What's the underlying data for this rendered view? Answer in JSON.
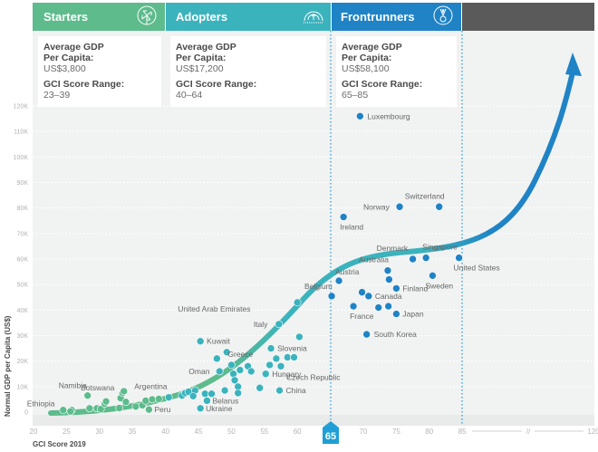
{
  "bands": [
    {
      "name": "Starters",
      "icon": "pinwheel-icon",
      "color": "#5dbb8c",
      "avg_gdp_label": "Average GDP",
      "avg_gdp_label2": "Per Capita:",
      "avg_gdp_value": "US$3,800",
      "range_label": "GCI Score Range:",
      "range_value": "23–39"
    },
    {
      "name": "Adopters",
      "icon": "gauge-icon",
      "color": "#3bb3bd",
      "avg_gdp_label": "Average GDP",
      "avg_gdp_label2": "Per Capita:",
      "avg_gdp_value": "US$17,200",
      "range_label": "GCI Score Range:",
      "range_value": "40–64"
    },
    {
      "name": "Frontrunners",
      "icon": "medal-icon",
      "color": "#1f83c6",
      "avg_gdp_label": "Average GDP",
      "avg_gdp_label2": "Per Capita:",
      "avg_gdp_value": "US$58,100",
      "range_label": "GCI Score Range:",
      "range_value": "65–85"
    }
  ],
  "colors": {
    "starters": "#5dbb8c",
    "adopters": "#3bb3bd",
    "frontrunners": "#1f83c6",
    "dark_band": "#5a5a5a",
    "plot_bg": "#f1f2f2",
    "marker": "#1f9fd6"
  },
  "threshold_marker": "65",
  "chart_data": {
    "type": "scatter",
    "title": "",
    "xlabel": "GCI Score 2019",
    "ylabel": "Normal GDP per Capita (US$)",
    "xlim": [
      20,
      120
    ],
    "x_break": {
      "from": 85,
      "to": 120,
      "label": "//"
    },
    "ylim": [
      0,
      120000
    ],
    "x_ticks": [
      "20",
      "25",
      "30",
      "35",
      "40",
      "45",
      "50",
      "55",
      "60",
      "65",
      "70",
      "75",
      "80",
      "85",
      "120"
    ],
    "y_ticks": [
      "0",
      "10K",
      "20K",
      "30K",
      "40K",
      "50K",
      "60K",
      "70K",
      "80K",
      "90K",
      "100K",
      "110K",
      "120K"
    ],
    "grid": true,
    "trend_line": "exponential curve with arrow, colored green to teal to blue",
    "series": [
      {
        "name": "Starters",
        "points": [
          {
            "x": 24.5,
            "y": 800,
            "label": "Ethiopia"
          },
          {
            "x": 25.8,
            "y": 800,
            "label": ""
          },
          {
            "x": 25.6,
            "y": 300,
            "label": ""
          },
          {
            "x": 28.5,
            "y": 1500,
            "label": ""
          },
          {
            "x": 28.2,
            "y": 6500,
            "label": "Namibia"
          },
          {
            "x": 29.6,
            "y": 1500,
            "label": ""
          },
          {
            "x": 30.2,
            "y": 1200,
            "label": ""
          },
          {
            "x": 30.8,
            "y": 3300,
            "label": ""
          },
          {
            "x": 31.0,
            "y": 4200,
            "label": "Botswana"
          },
          {
            "x": 33.0,
            "y": 1600,
            "label": ""
          },
          {
            "x": 33.2,
            "y": 5500,
            "label": ""
          },
          {
            "x": 33.5,
            "y": 7500,
            "label": ""
          },
          {
            "x": 33.7,
            "y": 8200,
            "label": ""
          },
          {
            "x": 34.0,
            "y": 4000,
            "label": ""
          },
          {
            "x": 35.5,
            "y": 2200,
            "label": ""
          },
          {
            "x": 36.5,
            "y": 2700,
            "label": ""
          },
          {
            "x": 37.0,
            "y": 4500,
            "label": ""
          },
          {
            "x": 37.5,
            "y": 1000,
            "label": "Peru"
          },
          {
            "x": 38.0,
            "y": 5000,
            "label": ""
          },
          {
            "x": 39.0,
            "y": 5200,
            "label": ""
          }
        ]
      },
      {
        "name": "Adopters",
        "points": [
          {
            "x": 40.5,
            "y": 5800,
            "label": "Argentina"
          },
          {
            "x": 42.5,
            "y": 6500,
            "label": ""
          },
          {
            "x": 43.0,
            "y": 7500,
            "label": ""
          },
          {
            "x": 43.5,
            "y": 8000,
            "label": ""
          },
          {
            "x": 44.5,
            "y": 8500,
            "label": ""
          },
          {
            "x": 44.2,
            "y": 6300,
            "label": ""
          },
          {
            "x": 46.0,
            "y": 7200,
            "label": ""
          },
          {
            "x": 47.0,
            "y": 7200,
            "label": ""
          },
          {
            "x": 45.3,
            "y": 1500,
            "label": "Ukraine"
          },
          {
            "x": 46.3,
            "y": 4500,
            "label": "Belarus"
          },
          {
            "x": 49.0,
            "y": 8500,
            "label": ""
          },
          {
            "x": 48.2,
            "y": 16000,
            "label": "Oman"
          },
          {
            "x": 45.3,
            "y": 27800,
            "label": "Kuwait"
          },
          {
            "x": 47.8,
            "y": 21000,
            "label": ""
          },
          {
            "x": 49.3,
            "y": 23500,
            "label": ""
          },
          {
            "x": 50.0,
            "y": 18500,
            "label": "Greece"
          },
          {
            "x": 50.3,
            "y": 15000,
            "label": ""
          },
          {
            "x": 50.5,
            "y": 12500,
            "label": ""
          },
          {
            "x": 51.0,
            "y": 10000,
            "label": ""
          },
          {
            "x": 51.0,
            "y": 7500,
            "label": ""
          },
          {
            "x": 51.3,
            "y": 16500,
            "label": ""
          },
          {
            "x": 52.5,
            "y": 18000,
            "label": ""
          },
          {
            "x": 53.0,
            "y": 16000,
            "label": ""
          },
          {
            "x": 55.8,
            "y": 18500,
            "label": ""
          },
          {
            "x": 55.2,
            "y": 15000,
            "label": "Hungary"
          },
          {
            "x": 54.3,
            "y": 9500,
            "label": ""
          },
          {
            "x": 56.0,
            "y": 25000,
            "label": "Slovenia"
          },
          {
            "x": 56.8,
            "y": 21000,
            "label": ""
          },
          {
            "x": 57.5,
            "y": 18000,
            "label": "Czech Republic"
          },
          {
            "x": 57.3,
            "y": 8500,
            "label": "China"
          },
          {
            "x": 58.5,
            "y": 21500,
            "label": ""
          },
          {
            "x": 59.5,
            "y": 21500,
            "label": ""
          },
          {
            "x": 60.3,
            "y": 29500,
            "label": ""
          },
          {
            "x": 57.2,
            "y": 34500,
            "label": "Italy"
          },
          {
            "x": 60.0,
            "y": 43000,
            "label": "United Arab Emirates"
          }
        ]
      },
      {
        "name": "Frontrunners",
        "points": [
          {
            "x": 65.2,
            "y": 45500,
            "label": "Belgium"
          },
          {
            "x": 66.3,
            "y": 51500,
            "label": "Austria"
          },
          {
            "x": 67.0,
            "y": 76500,
            "label": "Ireland"
          },
          {
            "x": 68.5,
            "y": 41500,
            "label": "France"
          },
          {
            "x": 69.5,
            "y": 116000,
            "label": "Luxembourg"
          },
          {
            "x": 69.8,
            "y": 47000,
            "label": ""
          },
          {
            "x": 70.5,
            "y": 30500,
            "label": "South Korea"
          },
          {
            "x": 70.8,
            "y": 45500,
            "label": "Canada"
          },
          {
            "x": 72.3,
            "y": 41000,
            "label": ""
          },
          {
            "x": 73.8,
            "y": 41500,
            "label": ""
          },
          {
            "x": 73.7,
            "y": 55500,
            "label": "Australia"
          },
          {
            "x": 73.9,
            "y": 52000,
            "label": ""
          },
          {
            "x": 75.0,
            "y": 48500,
            "label": "Finland"
          },
          {
            "x": 75.0,
            "y": 38500,
            "label": "Japan"
          },
          {
            "x": 75.5,
            "y": 80500,
            "label": "Norway"
          },
          {
            "x": 77.5,
            "y": 60000,
            "label": "Denmark"
          },
          {
            "x": 79.5,
            "y": 60500,
            "label": "Singapore"
          },
          {
            "x": 80.5,
            "y": 53500,
            "label": "Sweden"
          },
          {
            "x": 81.5,
            "y": 80500,
            "label": "Switzerland"
          },
          {
            "x": 84.5,
            "y": 60500,
            "label": "United States"
          }
        ]
      }
    ]
  }
}
